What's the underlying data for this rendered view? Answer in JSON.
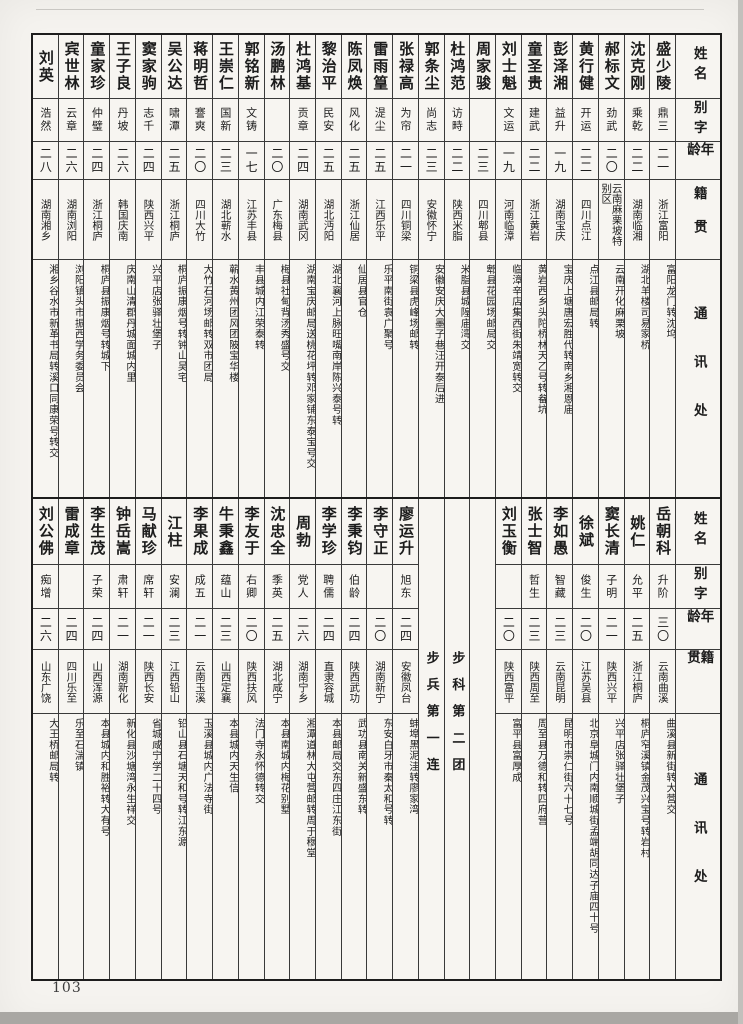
{
  "page": {
    "number": "103"
  },
  "header_labels": {
    "name": "姓名",
    "zi": "别字",
    "age": "年龄",
    "origin": "籍贯",
    "address": "通讯处"
  },
  "unit_heading": {
    "regiment": "步科第二团",
    "company": "步兵第一连"
  },
  "tables": [
    {
      "id": "top",
      "columns": [
        {
          "type": "person",
          "name": "盛少陵",
          "zi": "鼎三",
          "age": "二一",
          "origin": "浙江富阳",
          "address": "富阳龙门转沈坞"
        },
        {
          "type": "person",
          "name": "沈克刚",
          "zi": "乘乾",
          "age": "二二",
          "origin": "湖南临湘",
          "address": "湖北羊楼司易家桥"
        },
        {
          "type": "person",
          "name": "郝标文",
          "zi": "劲武",
          "age": "二〇",
          "origin": "云南麻栗坡特别区",
          "address": "云南开化麻栗坡"
        },
        {
          "type": "person",
          "name": "黄行健",
          "zi": "开运",
          "age": "二二",
          "origin": "四川点江",
          "address": "点江县邮局转"
        },
        {
          "type": "person",
          "name": "彭泽湘",
          "zi": "益升",
          "age": "一九",
          "origin": "湖南宝庆",
          "address": "宝庆上塘唐宏胜代转南乡湘恩庙"
        },
        {
          "type": "person",
          "name": "童圣贵",
          "zi": "建武",
          "age": "二二",
          "origin": "浙江黄岩",
          "address": "黄岩西乡头陀桥林天乙号转畚坑"
        },
        {
          "type": "person",
          "name": "刘士魁",
          "zi": "文运",
          "age": "一九",
          "origin": "河南临漳",
          "address": "临漳辛店集西街朱靖宽转交"
        },
        {
          "type": "person",
          "name": "周家骏",
          "zi": "",
          "age": "二三",
          "origin": "四川郫县",
          "address": "郫县花园场邮局交"
        },
        {
          "type": "person",
          "name": "杜鸿范",
          "zi": "访畤",
          "age": "二二",
          "origin": "陕西米脂",
          "address": "米脂县城隍庙湾交"
        },
        {
          "type": "person",
          "name": "郭条尘",
          "zi": "尚志",
          "age": "二三",
          "origin": "安徽怀宁",
          "address": "安徽安庆大墨子巷汪开泰后进"
        },
        {
          "type": "person",
          "name": "张禄高",
          "zi": "为帘",
          "age": "二一",
          "origin": "四川铜梁",
          "address": "铜梁县虎峰场邮转"
        },
        {
          "type": "person",
          "name": "雷雨篁",
          "zi": "湜尘",
          "age": "二五",
          "origin": "江西乐平",
          "address": "乐平南街袁广聚号"
        },
        {
          "type": "person",
          "name": "陈凤焕",
          "zi": "风化",
          "age": "二五",
          "origin": "浙江仙居",
          "address": "仙居县官仓"
        },
        {
          "type": "person",
          "name": "黎治平",
          "zi": "民安",
          "age": "二五",
          "origin": "湖北沔阳",
          "address": "湖北襄河上脉旺嘴南岸陈兴泰号转"
        },
        {
          "type": "person",
          "name": "杜鸿基",
          "zi": "贡章",
          "age": "二四",
          "origin": "湖南武冈",
          "address": "湖南宝庆邮局送桃花坪转邓家铺东泰宝号交"
        },
        {
          "type": "person",
          "name": "汤鹏林",
          "zi": "",
          "age": "二〇",
          "origin": "广东梅县",
          "address": "梅县社甸背汤秀盛号交"
        },
        {
          "type": "person",
          "name": "郭铭新",
          "zi": "文铸",
          "age": "一七",
          "origin": "江苏丰县",
          "address": "丰县城内江荣泰转"
        },
        {
          "type": "person",
          "name": "王崇仁",
          "zi": "国新",
          "age": "二三",
          "origin": "湖北蕲水",
          "address": "蕲水黄州团风团陂宝华楼"
        },
        {
          "type": "person",
          "name": "蒋明哲",
          "zi": "謇爽",
          "age": "二〇",
          "origin": "四川大竹",
          "address": "大竹石河场邮转双市团局"
        },
        {
          "type": "person",
          "name": "吴公达",
          "zi": "啸潭",
          "age": "二五",
          "origin": "浙江桐庐",
          "address": "桐庐振康烟号转钟山吴宅"
        },
        {
          "type": "person",
          "name": "窦家驹",
          "zi": "志千",
          "age": "二四",
          "origin": "陕西兴平",
          "address": "兴平店张驿壮堡子"
        },
        {
          "type": "person",
          "name": "王子良",
          "zi": "丹坡",
          "age": "二六",
          "origin": "韩国庆南",
          "address": "庆南山清郡丹城面城内里"
        },
        {
          "type": "person",
          "name": "童家珍",
          "zi": "仲璧",
          "age": "二四",
          "origin": "浙江桐庐",
          "address": "桐庐县振康烟号转城下"
        },
        {
          "type": "person",
          "name": "宾世林",
          "zi": "云章",
          "age": "二六",
          "origin": "湖南浏阳",
          "address": "浏阳镇头市振西学务委员会"
        },
        {
          "type": "person",
          "name": "刘英",
          "zi": "浩然",
          "age": "二八",
          "origin": "湖南湘乡",
          "address": "湘乡谷水市新革书局转溪口同康荣号转交"
        }
      ]
    },
    {
      "id": "bottom",
      "columns": [
        {
          "type": "person",
          "name": "岳朝科",
          "zi": "升阶",
          "age": "三〇",
          "origin": "云南曲溪",
          "address": "曲溪县新街转大营交"
        },
        {
          "type": "person",
          "name": "姚仁",
          "zi": "允平",
          "age": "二五",
          "origin": "浙江桐庐",
          "address": "桐庐窄溪镇金茂兴宝号转岩村"
        },
        {
          "type": "person",
          "name": "窦长清",
          "zi": "子明",
          "age": "二一",
          "origin": "陕西兴平",
          "address": "兴平店张驿壮堡子"
        },
        {
          "type": "person",
          "name": "徐斌",
          "zi": "俊生",
          "age": "二〇",
          "origin": "江苏吴县",
          "address": "北京阜城门内南顺城街孟端胡同达子庙四十号"
        },
        {
          "type": "person",
          "name": "李如愚",
          "zi": "智藏",
          "age": "二三",
          "origin": "云南昆明",
          "address": "昆明市崇仁街六十七号"
        },
        {
          "type": "person",
          "name": "张士智",
          "zi": "哲生",
          "age": "二三",
          "origin": "陕西周至",
          "address": "周至县万德和转四府营"
        },
        {
          "type": "person",
          "name": "刘玉衡",
          "zi": "",
          "age": "二〇",
          "origin": "陕西富平",
          "address": "富平县富厚成"
        },
        {
          "type": "spacer"
        },
        {
          "type": "unit",
          "label": "步科第二团"
        },
        {
          "type": "unit",
          "label": "步兵第一连"
        },
        {
          "type": "person",
          "name": "廖运升",
          "zi": "旭东",
          "age": "二四",
          "origin": "安徽凤台",
          "address": "蚌埠黑泥洼转廖家湾"
        },
        {
          "type": "person",
          "name": "李守正",
          "zi": "",
          "age": "二〇",
          "origin": "湖南新宁",
          "address": "东安白牙市秦太和号转"
        },
        {
          "type": "person",
          "name": "李秉钧",
          "zi": "伯龄",
          "age": "二四",
          "origin": "陕西武功",
          "address": "武功县南关新盛东转"
        },
        {
          "type": "person",
          "name": "李学珍",
          "zi": "聘儒",
          "age": "二四",
          "origin": "直隶容城",
          "address": "本县邮局交东四庄江东街"
        },
        {
          "type": "person",
          "name": "周勃",
          "zi": "党人",
          "age": "二六",
          "origin": "湖南宁乡",
          "address": "湘潭道林大屯营邮转周于穆堂"
        },
        {
          "type": "person",
          "name": "沈忠全",
          "zi": "季英",
          "age": "二五",
          "origin": "湖北咸宁",
          "address": "本县南城内梅花别墅"
        },
        {
          "type": "person",
          "name": "李友于",
          "zi": "右卿",
          "age": "二〇",
          "origin": "陕西扶风",
          "address": "法门寺永怀德转交"
        },
        {
          "type": "person",
          "name": "牛秉鑫",
          "zi": "蕴山",
          "age": "二三",
          "origin": "山西定襄",
          "address": "本县城内天生信"
        },
        {
          "type": "person",
          "name": "李果成",
          "zi": "成五",
          "age": "二一",
          "origin": "云南玉溪",
          "address": "玉溪县城内广法寺街"
        },
        {
          "type": "person",
          "name": "江柱",
          "zi": "安澜",
          "age": "二三",
          "origin": "江西铅山",
          "address": "铅山县石塘天和号转江东源"
        },
        {
          "type": "person",
          "name": "马献珍",
          "zi": "席轩",
          "age": "二一",
          "origin": "陕西长安",
          "address": "省城咸宁学二十四号"
        },
        {
          "type": "person",
          "name": "钟岳嵩",
          "zi": "肃轩",
          "age": "二一",
          "origin": "湖南新化",
          "address": "新化县沙塘湾永生祥交"
        },
        {
          "type": "person",
          "name": "李生茂",
          "zi": "子荣",
          "age": "二四",
          "origin": "山西浑源",
          "address": "本县城内和胜裕转大有号"
        },
        {
          "type": "person",
          "name": "雷成章",
          "zi": "",
          "age": "二四",
          "origin": "四川乐至",
          "address": "乐至石湍镇"
        },
        {
          "type": "person",
          "name": "刘公佛",
          "zi": "痴增",
          "age": "二六",
          "origin": "山东广饶",
          "address": "大王桥邮局转"
        }
      ]
    }
  ]
}
